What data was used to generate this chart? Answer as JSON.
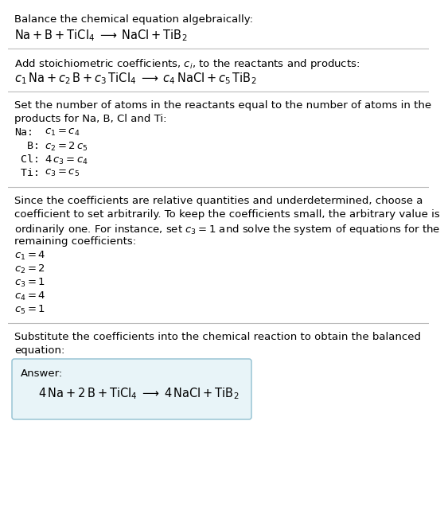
{
  "bg_color": "#ffffff",
  "text_color": "#000000",
  "line_color": "#bbbbbb",
  "box_edge_color": "#90bfd0",
  "box_face_color": "#e8f4f8",
  "font_size": 9.5,
  "font_size_eq": 10.5,
  "sections": {
    "s1_title": "Balance the chemical equation algebraically:",
    "s1_eq": "$\\mathrm{Na + B + TiCl_4 \\;\\longrightarrow\\; NaCl + TiB_2}$",
    "s2_title": "Add stoichiometric coefficients, $c_i$, to the reactants and products:",
    "s2_eq": "$c_1\\,\\mathrm{Na} + c_2\\,\\mathrm{B} + c_3\\,\\mathrm{TiCl_4} \\;\\longrightarrow\\; c_4\\,\\mathrm{NaCl} + c_5\\,\\mathrm{TiB_2}$",
    "s3_title1": "Set the number of atoms in the reactants equal to the number of atoms in the",
    "s3_title2": "products for Na, B, Cl and Ti:",
    "s3_eqs": [
      [
        "Na:",
        "$c_1 = c_4$"
      ],
      [
        "  B:",
        "$c_2 = 2\\,c_5$"
      ],
      [
        " Cl:",
        "$4\\,c_3 = c_4$"
      ],
      [
        " Ti:",
        "$c_3 = c_5$"
      ]
    ],
    "s4_title1": "Since the coefficients are relative quantities and underdetermined, choose a",
    "s4_title2": "coefficient to set arbitrarily. To keep the coefficients small, the arbitrary value is",
    "s4_title3": "ordinarily one. For instance, set $c_3 = 1$ and solve the system of equations for the",
    "s4_title4": "remaining coefficients:",
    "s4_coeffs": [
      "$c_1 = 4$",
      "$c_2 = 2$",
      "$c_3 = 1$",
      "$c_4 = 4$",
      "$c_5 = 1$"
    ],
    "s5_title1": "Substitute the coefficients into the chemical reaction to obtain the balanced",
    "s5_title2": "equation:",
    "ans_label": "Answer:",
    "ans_eq": "$\\mathrm{4\\,Na + 2\\,B + TiCl_4 \\;\\longrightarrow\\; 4\\,NaCl + TiB_2}$"
  }
}
